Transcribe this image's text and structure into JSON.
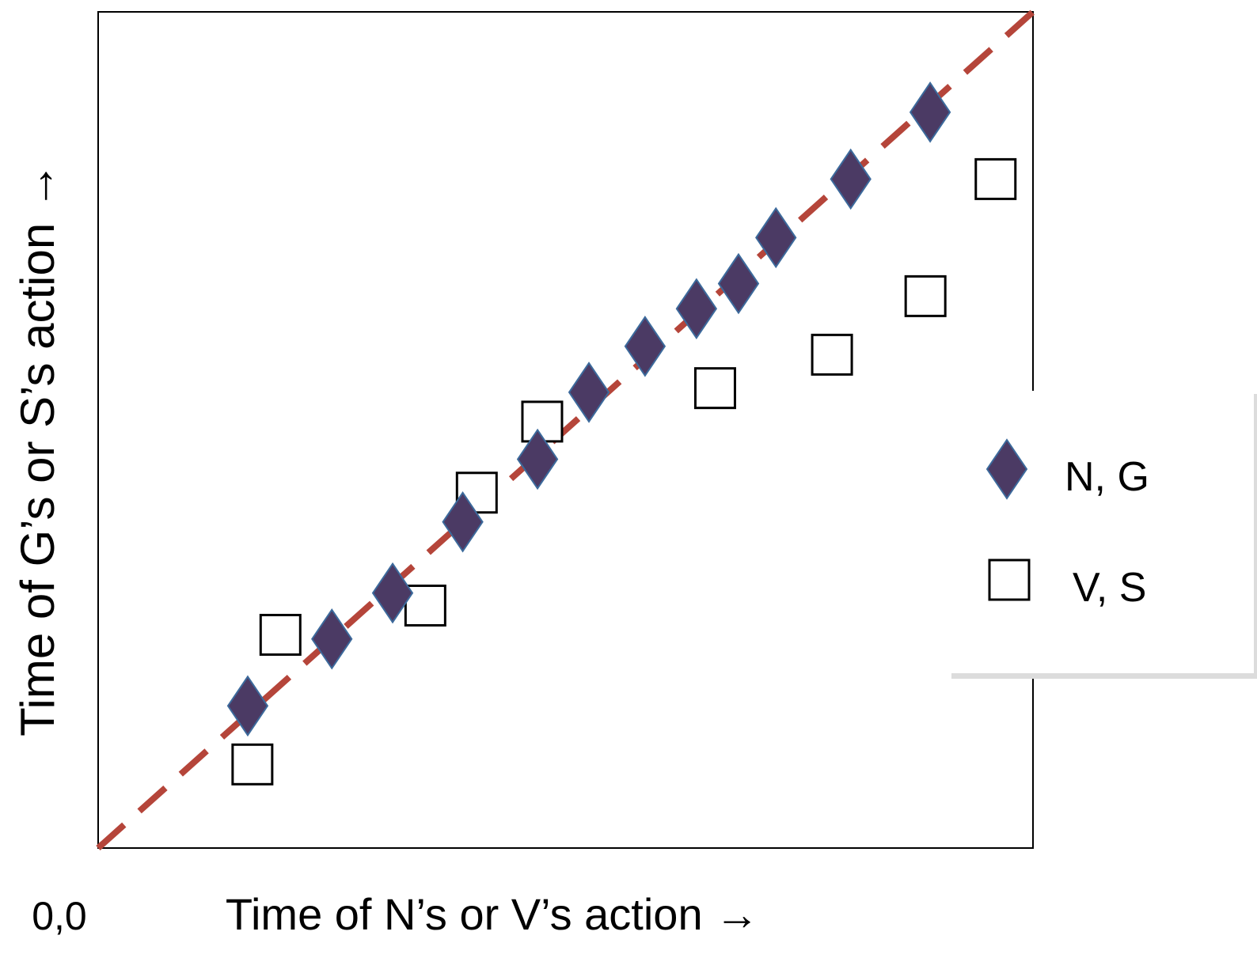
{
  "chart_data": {
    "type": "scatter",
    "xlabel": "Time of N’s or V’s action →",
    "ylabel": "Time of G’s or S’s action →",
    "origin_label": "0,0",
    "xlim": [
      0,
      100
    ],
    "ylim": [
      0,
      100
    ],
    "grid": false,
    "legend_position": "right",
    "reference_line": {
      "type": "diagonal",
      "from": [
        0,
        0
      ],
      "to": [
        100,
        100
      ],
      "style": "dashed",
      "color": "#b5453a"
    },
    "series": [
      {
        "name": "N, G",
        "marker": "diamond",
        "color": "#4b3a64",
        "edge_color": "#3c6a9c",
        "points": [
          {
            "x": 16,
            "y": 17
          },
          {
            "x": 25,
            "y": 25
          },
          {
            "x": 31.5,
            "y": 30.5
          },
          {
            "x": 39,
            "y": 39
          },
          {
            "x": 47,
            "y": 46.5
          },
          {
            "x": 52.5,
            "y": 54.5
          },
          {
            "x": 58.5,
            "y": 60
          },
          {
            "x": 64,
            "y": 64.5
          },
          {
            "x": 68.5,
            "y": 67.5
          },
          {
            "x": 72.5,
            "y": 73
          },
          {
            "x": 80.5,
            "y": 80
          },
          {
            "x": 89,
            "y": 88
          }
        ]
      },
      {
        "name": "V, S",
        "marker": "square",
        "color": "#ffffff",
        "edge_color": "#000000",
        "points": [
          {
            "x": 16.5,
            "y": 10
          },
          {
            "x": 19.5,
            "y": 25.5
          },
          {
            "x": 35,
            "y": 29
          },
          {
            "x": 40.5,
            "y": 42.5
          },
          {
            "x": 47.5,
            "y": 51
          },
          {
            "x": 66,
            "y": 55
          },
          {
            "x": 78.5,
            "y": 59
          },
          {
            "x": 88.5,
            "y": 66
          },
          {
            "x": 96,
            "y": 80
          }
        ]
      }
    ]
  }
}
